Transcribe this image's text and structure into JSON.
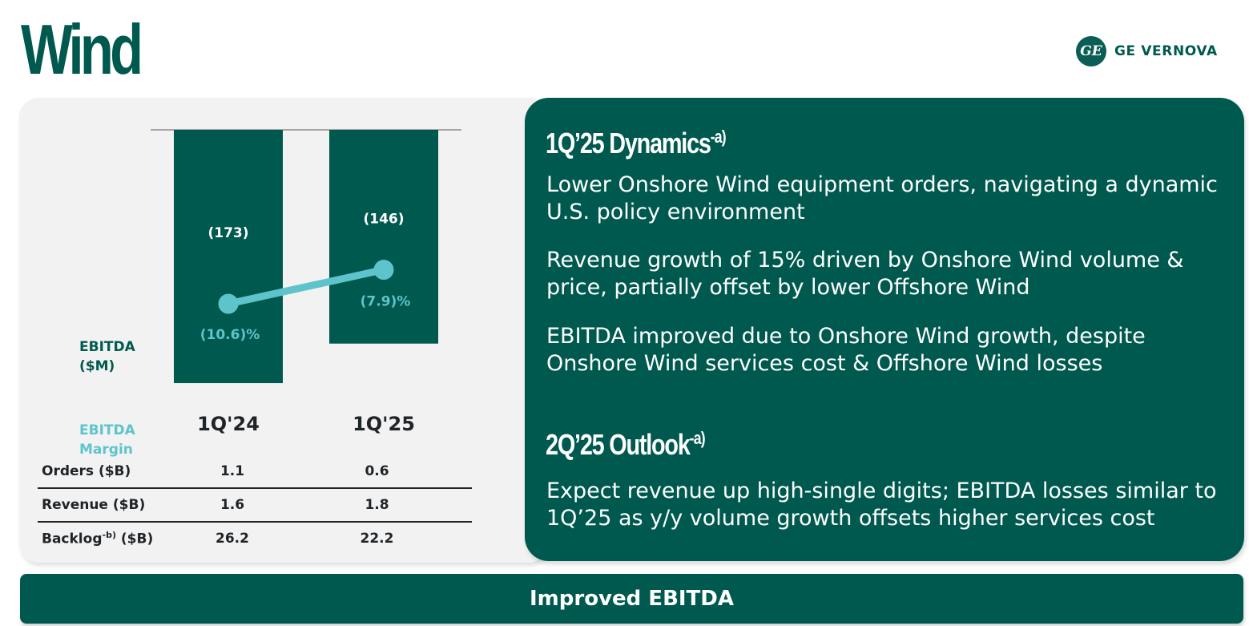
{
  "page": {
    "title": "Wind",
    "brand": {
      "mark": "GE",
      "name": "GE VERNOVA"
    }
  },
  "chart_data": {
    "type": "bar",
    "categories": [
      "1Q'24",
      "1Q'25"
    ],
    "series": [
      {
        "name": "EBITDA ($M)",
        "type": "bar",
        "values": [
          -173,
          -146
        ],
        "labels": [
          "(173)",
          "(146)"
        ]
      },
      {
        "name": "EBITDA Margin",
        "type": "line",
        "values": [
          -10.6,
          -7.9
        ],
        "labels": [
          "(10.6)%",
          "(7.9)%"
        ]
      }
    ],
    "row_labels": {
      "ebitda_line1": "EBITDA",
      "ebitda_line2": "($M)",
      "margin_line1": "EBITDA",
      "margin_line2": "Margin"
    },
    "ylim": [
      -173,
      0
    ],
    "margin_ylim": [
      -14.6,
      -3.8
    ],
    "colors": {
      "bar": "#00594f",
      "line": "#5ec4cc",
      "axis": "#7a7a7a"
    }
  },
  "metrics": {
    "rows": [
      {
        "name": "Orders ($B)",
        "v1": "1.1",
        "v2": "0.6"
      },
      {
        "name": "Revenue ($B)",
        "v1": "1.6",
        "v2": "1.8"
      },
      {
        "name": "Backlog",
        "sup": "-b)",
        "suffix": " ($B)",
        "v1": "26.2",
        "v2": "22.2"
      }
    ]
  },
  "dynamics": {
    "heading": "1Q’25 Dynamics",
    "note": "-a)",
    "bullets": [
      "Lower Onshore Wind equipment orders, navigating a dynamic U.S. policy environment",
      "Revenue growth of 15% driven by Onshore Wind volume & price, partially offset by lower Offshore Wind",
      "EBITDA improved due to Onshore Wind growth, despite Onshore Wind services cost & Offshore Wind losses"
    ]
  },
  "outlook": {
    "heading": "2Q’25 Outlook",
    "note": "-a)",
    "bullets": [
      "Expect revenue up high-single digits; EBITDA losses similar to 1Q’25 as y/y volume growth offsets higher services cost"
    ]
  },
  "banner": {
    "text": "Improved EBITDA"
  }
}
